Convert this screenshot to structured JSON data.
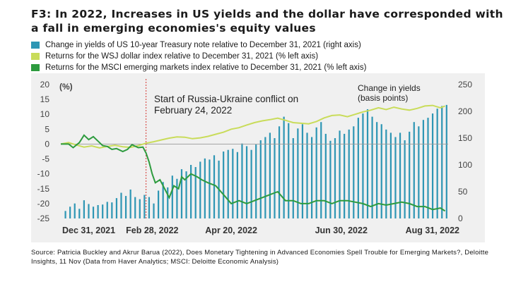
{
  "title": "F3: In 2022, Increases in US yields and the dollar have corresponded with a fall in emerging economies's equity values",
  "source": "Source: Patricia Buckley and Akrur Barua (2022), Does Monetary Tightening in Advanced Economies Spell Trouble for Emerging Markets?, Deloitte Insights, 11 Nov (Data from Haver Analytics; MSCI: Deloitte Economic Analysis)",
  "colors": {
    "yields": "#2e96b4",
    "dollar": "#c9dc5a",
    "msci": "#2d9b3e",
    "conflict_line": "#d9534f"
  },
  "chart_data": {
    "type": "bar+line",
    "title": "F3: In 2022, Increases in US yields and the dollar have corresponded with a fall in emerging economies's equity values",
    "legend": [
      "Change in yields of US 10-year Treasury note relative to December 31, 2021 (right axis)",
      "Returns for the WSJ dollar index relative to December 31, 2021 (% left axis)",
      "Returns for the MSCI emerging markets index relative to December 31, 2021 (% left axis)"
    ],
    "left_axis": {
      "unit_label": "(%)",
      "ticks": [
        "20",
        "15",
        "10",
        "5",
        "0",
        "-5",
        "-10",
        "-15",
        "-20",
        "-25"
      ],
      "ylim": [
        -25,
        20
      ]
    },
    "right_axis": {
      "ticks": [
        "250",
        "200",
        "150",
        "100",
        "50",
        "0"
      ],
      "ylim": [
        0,
        250
      ]
    },
    "x_ticks": [
      "Dec 31, 2021",
      "Feb 28, 2022",
      "Apr 20, 2022",
      "Jun 30, 2022",
      "Aug 31, 2022"
    ],
    "x_tick_day_index": [
      0,
      59,
      110,
      181,
      243
    ],
    "x_range_days": [
      0,
      250
    ],
    "annotations": [
      {
        "text": "Start of Russia-Ukraine conflict on",
        "text2": "February 24, 2022",
        "day": 55
      },
      {
        "text": "Change in yields",
        "text2": "(basis points)"
      }
    ],
    "series": [
      {
        "name": "Change in yields of US 10-year Treasury note relative to December 31, 2021 (right axis)",
        "type": "bar",
        "axis": "right",
        "x": [
          3,
          6,
          9,
          12,
          15,
          18,
          21,
          24,
          27,
          30,
          33,
          36,
          39,
          42,
          45,
          48,
          51,
          54,
          57,
          60,
          63,
          66,
          69,
          72,
          75,
          78,
          81,
          84,
          87,
          90,
          93,
          96,
          99,
          102,
          105,
          108,
          111,
          114,
          117,
          120,
          123,
          126,
          129,
          132,
          135,
          138,
          141,
          144,
          147,
          150,
          153,
          156,
          159,
          162,
          165,
          168,
          171,
          174,
          177,
          180,
          183,
          186,
          189,
          192,
          195,
          198,
          201,
          204,
          207,
          210,
          213,
          216,
          219,
          222,
          225,
          228,
          231,
          234,
          237,
          240,
          243,
          246,
          249
        ],
        "values": [
          14,
          22,
          28,
          18,
          34,
          27,
          22,
          25,
          26,
          31,
          30,
          38,
          48,
          42,
          54,
          40,
          36,
          44,
          40,
          28,
          52,
          68,
          58,
          80,
          74,
          92,
          88,
          100,
          96,
          106,
          112,
          110,
          118,
          108,
          125,
          128,
          130,
          124,
          140,
          135,
          128,
          138,
          146,
          152,
          160,
          150,
          172,
          190,
          178,
          150,
          168,
          176,
          160,
          152,
          170,
          180,
          158,
          145,
          150,
          164,
          158,
          166,
          172,
          188,
          196,
          204,
          190,
          180,
          176,
          166,
          160,
          152,
          160,
          146,
          162,
          180,
          172,
          184,
          188,
          196,
          205,
          210,
          212
        ]
      },
      {
        "name": "Returns for the WSJ dollar index relative to December 31, 2021 (% left axis)",
        "type": "line",
        "axis": "left",
        "x": [
          0,
          5,
          10,
          15,
          20,
          25,
          30,
          35,
          40,
          45,
          50,
          55,
          60,
          65,
          70,
          75,
          80,
          85,
          90,
          95,
          100,
          105,
          110,
          115,
          120,
          125,
          130,
          135,
          140,
          145,
          150,
          155,
          160,
          165,
          170,
          175,
          180,
          185,
          190,
          195,
          200,
          205,
          210,
          215,
          220,
          225,
          230,
          235,
          240,
          245,
          248
        ],
        "values": [
          0,
          0.5,
          -0.3,
          -1,
          -0.6,
          -1.3,
          -0.8,
          -0.4,
          -0.9,
          -1.1,
          -0.5,
          0.3,
          0.8,
          1.4,
          2,
          2.4,
          2.3,
          1.8,
          2.1,
          2.6,
          3.3,
          4,
          5,
          5.5,
          6.4,
          7.2,
          7.8,
          8.2,
          8.7,
          8,
          7.2,
          7,
          6.8,
          7.6,
          8.8,
          9.6,
          9.8,
          9.2,
          10,
          10.8,
          11.4,
          12.2,
          11.6,
          12.4,
          11.8,
          11.4,
          12,
          12.8,
          13,
          12.2,
          12.8
        ]
      },
      {
        "name": "Returns for the MSCI emerging markets index relative to December 31, 2021 (% left axis)",
        "type": "line",
        "axis": "left",
        "x": [
          0,
          5,
          8,
          12,
          15,
          18,
          21,
          24,
          27,
          30,
          33,
          36,
          40,
          43,
          46,
          50,
          53,
          55,
          57,
          59,
          61,
          64,
          67,
          70,
          73,
          76,
          78,
          80,
          84,
          88,
          91,
          95,
          100,
          105,
          110,
          115,
          120,
          125,
          130,
          135,
          140,
          145,
          150,
          155,
          160,
          165,
          170,
          175,
          180,
          185,
          190,
          195,
          200,
          205,
          210,
          215,
          220,
          225,
          230,
          235,
          240,
          245,
          248
        ],
        "values": [
          0,
          0,
          -1.2,
          0.5,
          3,
          1.5,
          2.5,
          1,
          -0.5,
          -0.8,
          -1.8,
          -1.5,
          -2.5,
          -1.8,
          -0.2,
          -1.2,
          -1,
          -3,
          -6,
          -10,
          -13,
          -12,
          -15,
          -18,
          -14,
          -15,
          -11,
          -12,
          -10,
          -11,
          -12,
          -13,
          -14,
          -17,
          -20,
          -19,
          -20,
          -19,
          -18,
          -17,
          -16,
          -19,
          -19,
          -20,
          -20,
          -19,
          -19,
          -20,
          -19,
          -19,
          -19.5,
          -20,
          -21,
          -20,
          -20.5,
          -20,
          -19.5,
          -20,
          -21,
          -21,
          -22,
          -21.5,
          -22.5
        ]
      }
    ]
  }
}
